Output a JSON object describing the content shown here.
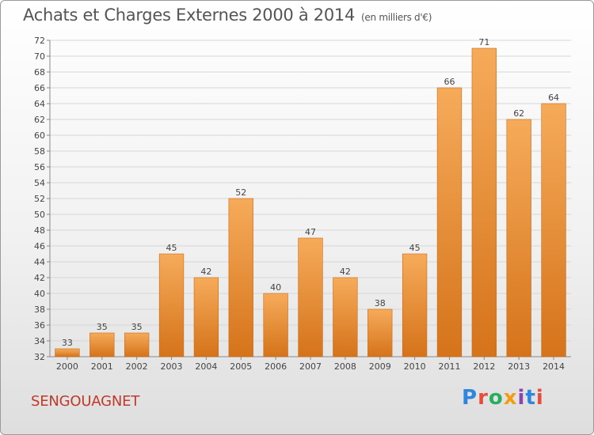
{
  "header": {
    "title": "Achats et Charges Externes 2000 à 2014",
    "subtitle": "(en milliers d'€)"
  },
  "footer": {
    "city": "SENGOUAGNET",
    "brand": "Proxiti",
    "brand_colors": [
      "#2e86de",
      "#e74c3c",
      "#27ae60",
      "#f39c12",
      "#8e44ad",
      "#2e86de",
      "#e74c3c"
    ]
  },
  "chart_data": {
    "type": "bar",
    "categories": [
      "2000",
      "2001",
      "2002",
      "2003",
      "2004",
      "2005",
      "2006",
      "2007",
      "2008",
      "2009",
      "2010",
      "2011",
      "2012",
      "2013",
      "2014"
    ],
    "values": [
      33,
      35,
      35,
      45,
      42,
      52,
      40,
      47,
      42,
      38,
      45,
      66,
      71,
      62,
      64
    ],
    "ylim": [
      32,
      72
    ],
    "ytick_step": 2,
    "grid": true,
    "bar_color": "#f0912f",
    "bar_color_light": "#f6ab5a",
    "bar_color_dark": "#d5731a"
  }
}
